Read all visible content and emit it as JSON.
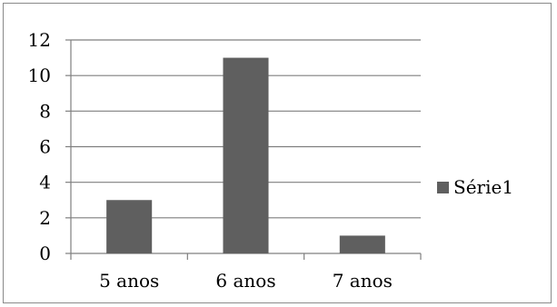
{
  "chart_data": {
    "type": "bar",
    "categories": [
      "5 anos",
      "6 anos",
      "7 anos"
    ],
    "series": [
      {
        "name": "Série1",
        "values": [
          3,
          11,
          1
        ]
      }
    ],
    "ylim": [
      0,
      12
    ],
    "yticks": [
      0,
      2,
      4,
      6,
      8,
      10,
      12
    ],
    "grid": true,
    "legend": "right",
    "bar_color": "#5f5f5f",
    "grid_color": "#7f7f7f"
  }
}
